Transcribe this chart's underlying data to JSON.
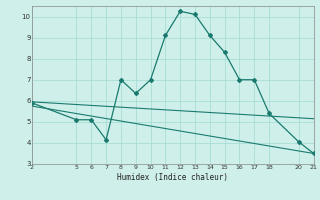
{
  "xlabel": "Humidex (Indice chaleur)",
  "bg_color": "#cff0ea",
  "grid_color": "#a8ddd7",
  "line_color": "#1a7a6e",
  "xlim": [
    2,
    21
  ],
  "ylim": [
    3,
    10.5
  ],
  "xticks": [
    2,
    5,
    6,
    7,
    8,
    9,
    10,
    11,
    12,
    13,
    14,
    15,
    16,
    17,
    18,
    20,
    21
  ],
  "yticks": [
    3,
    4,
    5,
    6,
    7,
    8,
    9,
    10
  ],
  "curve1_x": [
    2,
    5,
    6,
    7,
    8,
    9,
    10,
    11,
    12,
    13,
    14,
    15,
    16,
    17,
    18,
    20,
    21
  ],
  "curve1_y": [
    5.9,
    5.1,
    5.1,
    4.15,
    7.0,
    6.35,
    7.0,
    9.1,
    10.25,
    10.1,
    9.1,
    8.3,
    7.0,
    7.0,
    5.4,
    4.05,
    3.5
  ],
  "line2_x": [
    2,
    21
  ],
  "line2_y": [
    5.95,
    5.15
  ],
  "line3_x": [
    2,
    21
  ],
  "line3_y": [
    5.75,
    3.5
  ]
}
